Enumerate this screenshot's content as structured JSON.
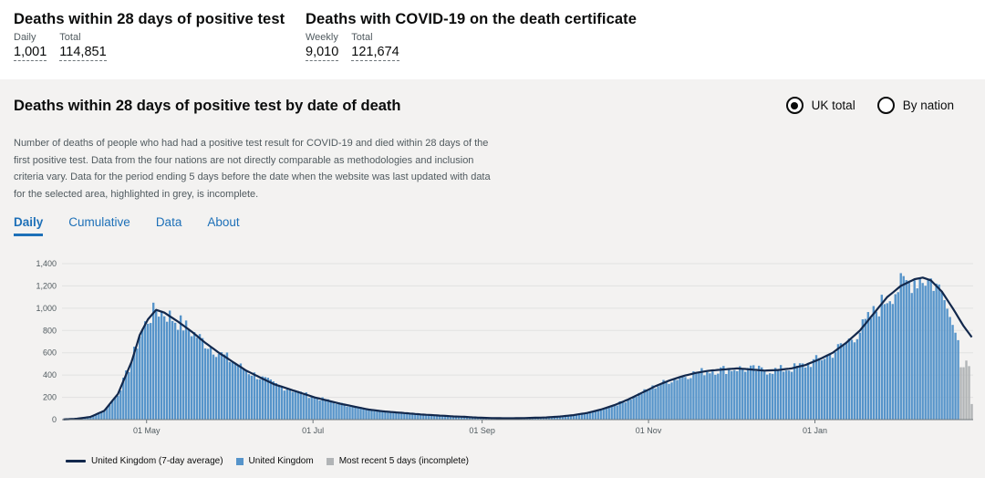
{
  "headline": {
    "deaths28": {
      "title": "Deaths within 28 days of positive test",
      "daily_label": "Daily",
      "daily_value": "1,001",
      "total_label": "Total",
      "total_value": "114,851"
    },
    "certificate": {
      "title": "Deaths with COVID-19 on the death certificate",
      "weekly_label": "Weekly",
      "weekly_value": "9,010",
      "total_label": "Total",
      "total_value": "121,674"
    }
  },
  "card": {
    "title": "Deaths within 28 days of positive test by date of death",
    "radio_uk": "UK total",
    "radio_nation": "By nation",
    "description": "Number of deaths of people who had had a positive test result for COVID-19 and died within 28 days of the first positive test. Data from the four nations are not directly comparable as methodologies and inclusion criteria vary. Data for the period ending 5 days before the date when the website was last updated with data for the selected area, highlighted in grey, is incomplete.",
    "tabs": [
      "Daily",
      "Cumulative",
      "Data",
      "About"
    ]
  },
  "colors": {
    "bar": "#5694ca",
    "line": "#12284c",
    "incomplete": "#b1b4b6",
    "link": "#1d70b8"
  },
  "chart_data": {
    "type": "bar",
    "title": "Deaths within 28 days of positive test by date of death",
    "ylim": [
      0,
      1400
    ],
    "yticks": [
      0,
      200,
      400,
      600,
      800,
      1000,
      1200,
      1400
    ],
    "ytick_labels": [
      "0",
      "200",
      "400",
      "600",
      "800",
      "1,000",
      "1,200",
      "1,400"
    ],
    "xticks": [
      {
        "day": 31,
        "label": "01 May"
      },
      {
        "day": 92,
        "label": "01 Jul"
      },
      {
        "day": 154,
        "label": "01 Sep"
      },
      {
        "day": 215,
        "label": "01 Nov"
      },
      {
        "day": 276,
        "label": "01 Jan"
      }
    ],
    "day_count": 334,
    "series_anchors": [
      [
        0,
        2
      ],
      [
        5,
        8
      ],
      [
        10,
        25
      ],
      [
        15,
        80
      ],
      [
        20,
        230
      ],
      [
        25,
        520
      ],
      [
        28,
        760
      ],
      [
        31,
        900
      ],
      [
        34,
        985
      ],
      [
        37,
        960
      ],
      [
        42,
        880
      ],
      [
        47,
        790
      ],
      [
        52,
        690
      ],
      [
        57,
        600
      ],
      [
        62,
        520
      ],
      [
        67,
        440
      ],
      [
        72,
        380
      ],
      [
        77,
        320
      ],
      [
        82,
        280
      ],
      [
        87,
        240
      ],
      [
        92,
        200
      ],
      [
        97,
        170
      ],
      [
        102,
        140
      ],
      [
        107,
        115
      ],
      [
        112,
        90
      ],
      [
        117,
        75
      ],
      [
        122,
        65
      ],
      [
        127,
        55
      ],
      [
        132,
        45
      ],
      [
        137,
        38
      ],
      [
        142,
        30
      ],
      [
        147,
        25
      ],
      [
        152,
        18
      ],
      [
        157,
        14
      ],
      [
        162,
        12
      ],
      [
        167,
        13
      ],
      [
        172,
        16
      ],
      [
        177,
        20
      ],
      [
        182,
        28
      ],
      [
        187,
        40
      ],
      [
        192,
        60
      ],
      [
        197,
        90
      ],
      [
        202,
        130
      ],
      [
        207,
        180
      ],
      [
        212,
        240
      ],
      [
        217,
        300
      ],
      [
        222,
        350
      ],
      [
        227,
        390
      ],
      [
        232,
        420
      ],
      [
        237,
        440
      ],
      [
        242,
        450
      ],
      [
        247,
        460
      ],
      [
        252,
        450
      ],
      [
        257,
        440
      ],
      [
        262,
        445
      ],
      [
        267,
        460
      ],
      [
        272,
        490
      ],
      [
        277,
        540
      ],
      [
        282,
        600
      ],
      [
        287,
        690
      ],
      [
        292,
        800
      ],
      [
        297,
        950
      ],
      [
        302,
        1100
      ],
      [
        307,
        1200
      ],
      [
        312,
        1260
      ],
      [
        315,
        1275
      ],
      [
        318,
        1250
      ],
      [
        322,
        1150
      ],
      [
        326,
        1000
      ],
      [
        330,
        840
      ],
      [
        333,
        740
      ]
    ],
    "incomplete_days": 5,
    "legend": [
      {
        "kind": "line",
        "label": "United Kingdom (7-day average)"
      },
      {
        "kind": "bar",
        "label": "United Kingdom"
      },
      {
        "kind": "incomplete",
        "label": "Most recent 5 days (incomplete)"
      }
    ]
  }
}
